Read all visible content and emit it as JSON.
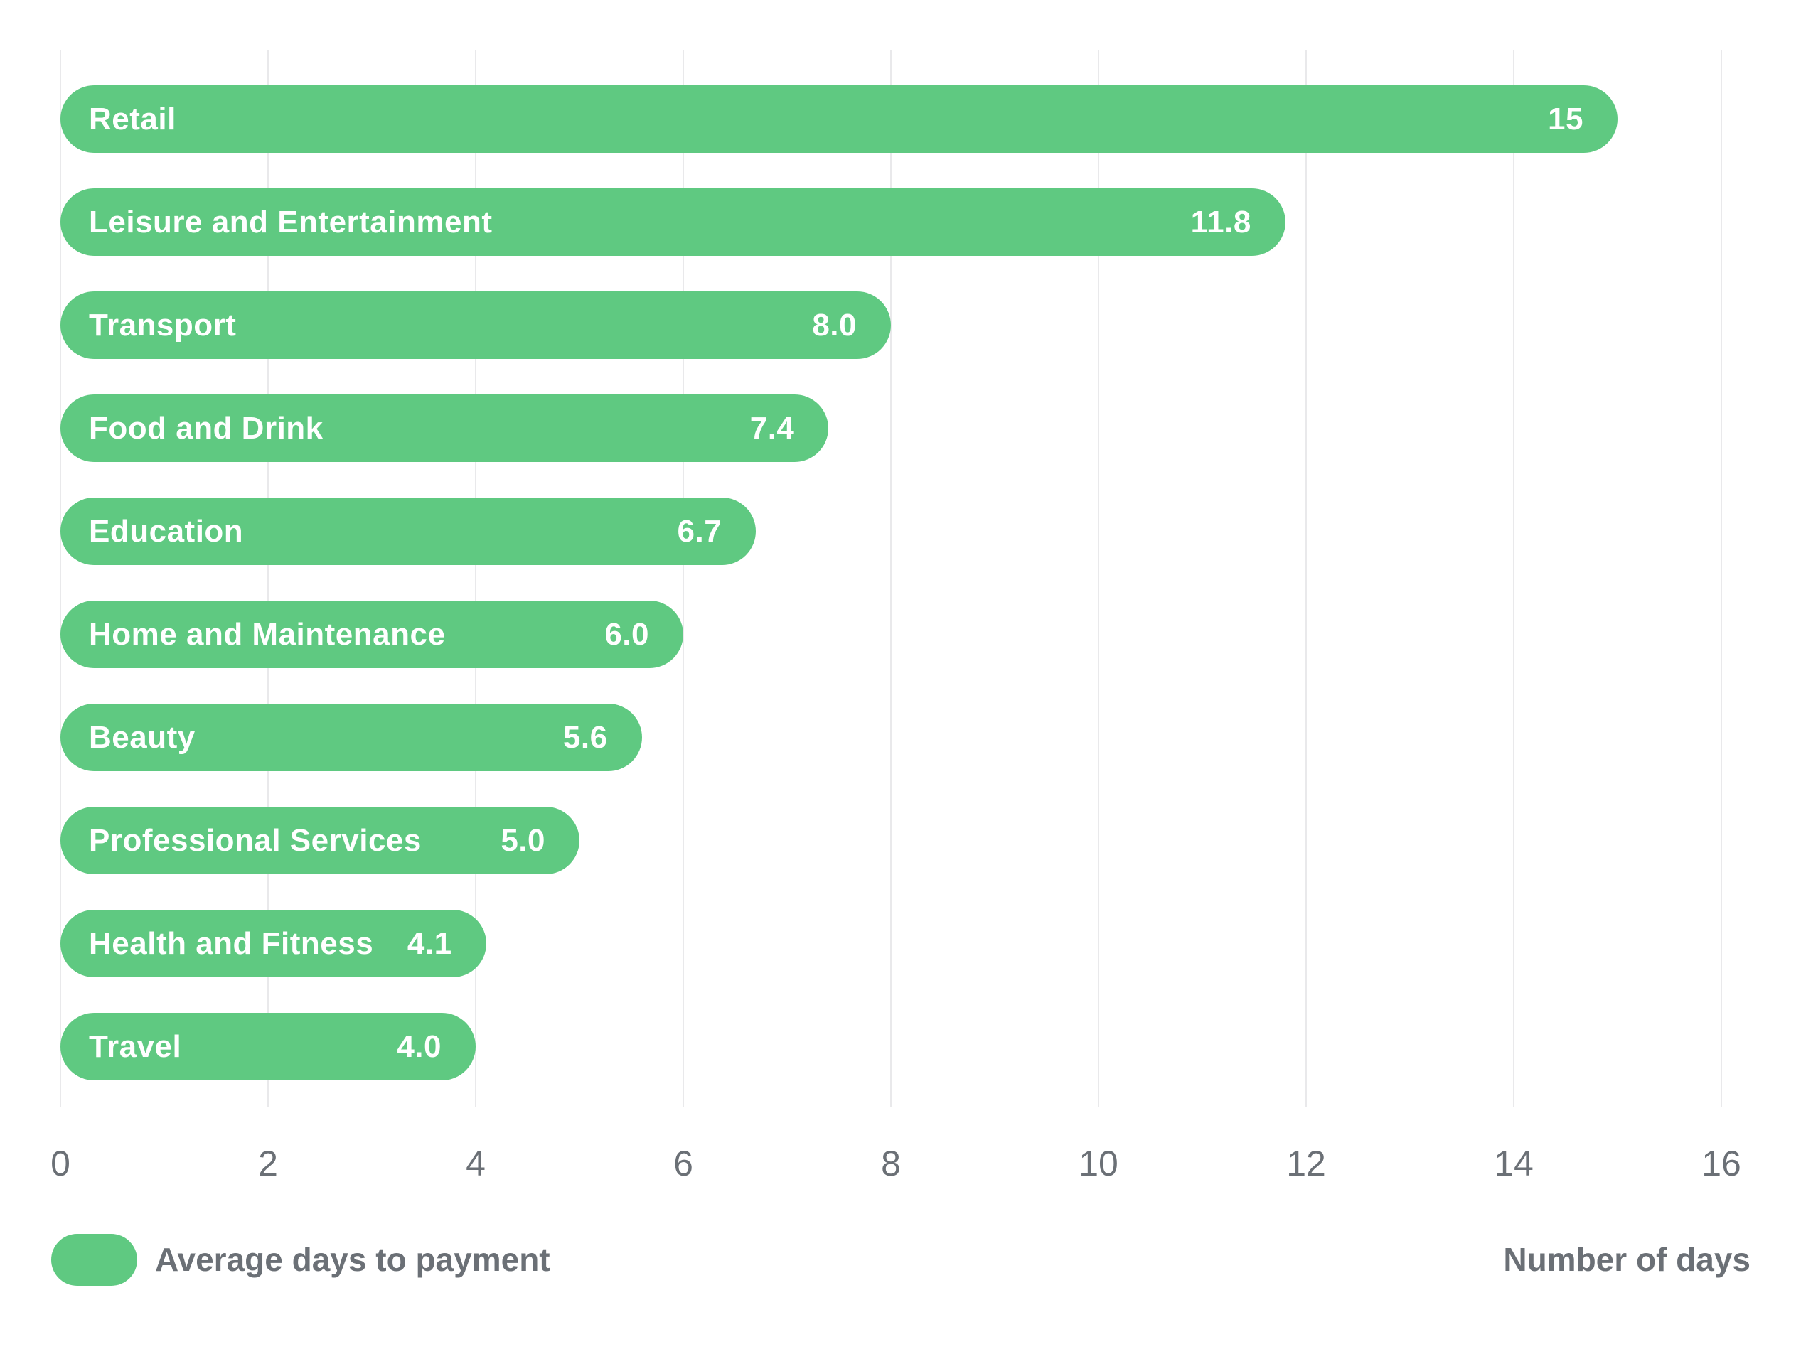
{
  "chart_data": {
    "type": "bar",
    "orientation": "horizontal",
    "categories": [
      "Retail",
      "Leisure and Entertainment",
      "Transport",
      "Food and Drink",
      "Education",
      "Home and Maintenance",
      "Beauty",
      "Professional Services",
      "Health and Fitness",
      "Travel"
    ],
    "values": [
      15,
      11.8,
      8.0,
      7.4,
      6.7,
      6.0,
      5.6,
      5.0,
      4.1,
      4.0
    ],
    "value_labels": [
      "15",
      "11.8",
      "8.0",
      "7.4",
      "6.7",
      "6.0",
      "5.6",
      "5.0",
      "4.1",
      "4.0"
    ],
    "x_ticks": [
      "0",
      "2",
      "4",
      "6",
      "8",
      "10",
      "12",
      "14",
      "16"
    ],
    "xlim": [
      0,
      16
    ],
    "grid": "vertical-gridlines-on",
    "legend": "Average days to payment",
    "legend_position": "bottom-left",
    "xlabel": "Number of days",
    "series_name": "Average days to payment",
    "bar_color": "#5fc981",
    "bar_text_color": "#ffffff",
    "axis_text_color": "#6b7076",
    "gridline_color": "#e9e9eb"
  }
}
